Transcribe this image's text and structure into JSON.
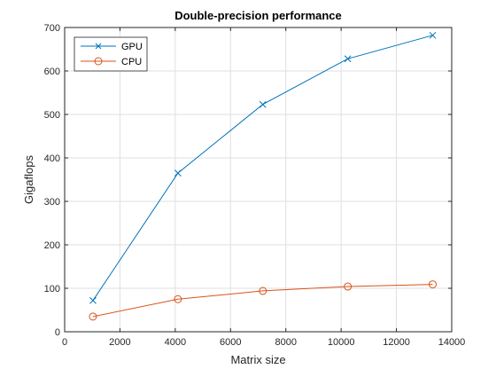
{
  "chart_data": {
    "type": "line",
    "title": "Double-precision performance",
    "xlabel": "Matrix size",
    "ylabel": "Gigaflops",
    "xlim": [
      0,
      14000
    ],
    "ylim": [
      0,
      700
    ],
    "xticks": [
      0,
      2000,
      4000,
      6000,
      8000,
      10000,
      12000,
      14000
    ],
    "yticks": [
      0,
      100,
      200,
      300,
      400,
      500,
      600,
      700
    ],
    "grid": true,
    "legend_position": "top-left",
    "series": [
      {
        "name": "GPU",
        "color": "#0072bd",
        "marker": "x",
        "x": [
          1024,
          4096,
          7168,
          10240,
          13312
        ],
        "y": [
          72,
          365,
          523,
          628,
          682
        ]
      },
      {
        "name": "CPU",
        "color": "#d95319",
        "marker": "o",
        "x": [
          1024,
          4096,
          7168,
          10240,
          13312
        ],
        "y": [
          35,
          75,
          94,
          104,
          109
        ]
      }
    ]
  }
}
